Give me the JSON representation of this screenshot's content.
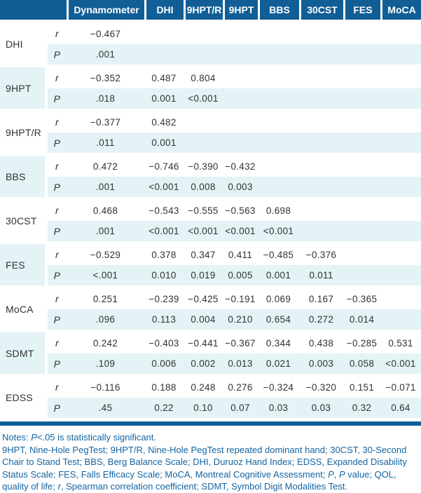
{
  "colors": {
    "header_bg": "#115e96",
    "stripe_bg": "#e4f3f5",
    "body_text": "#323232",
    "notes_text": "#1464a0"
  },
  "table": {
    "stat_labels": {
      "r": "r",
      "p": "P"
    },
    "columns": [
      "Dynamometer",
      "DHI",
      "9HPT/R",
      "9HPT",
      "BBS",
      "30CST",
      "FES",
      "MoCA"
    ],
    "row_groups": [
      {
        "label": "DHI",
        "r": [
          "−0.467"
        ],
        "p": [
          ".001"
        ]
      },
      {
        "label": "9HPT",
        "r": [
          "−0.352",
          "0.487",
          "0.804"
        ],
        "p": [
          ".018",
          "0.001",
          "<0.001"
        ]
      },
      {
        "label": "9HPT/R",
        "r": [
          "−0.377",
          "0.482"
        ],
        "p": [
          ".011",
          "0.001"
        ]
      },
      {
        "label": "BBS",
        "r": [
          "0.472",
          "−0.746",
          "−0.390",
          "−0.432"
        ],
        "p": [
          ".001",
          "<0.001",
          "0.008",
          "0.003"
        ]
      },
      {
        "label": "30CST",
        "r": [
          "0.468",
          "−0.543",
          "−0.555",
          "−0.563",
          "0.698"
        ],
        "p": [
          ".001",
          "<0.001",
          "<0.001",
          "<0.001",
          "<0.001"
        ]
      },
      {
        "label": "FES",
        "r": [
          "−0.529",
          "0.378",
          "0.347",
          "0.411",
          "−0.485",
          "−0.376"
        ],
        "p": [
          "<.001",
          "0.010",
          "0.019",
          "0.005",
          "0.001",
          "0.011"
        ]
      },
      {
        "label": "MoCA",
        "r": [
          "0.251",
          "−0.239",
          "−0.425",
          "−0.191",
          "0.069",
          "0.167",
          "−0.365"
        ],
        "p": [
          ".096",
          "0.113",
          "0.004",
          "0.210",
          "0.654",
          "0.272",
          "0.014"
        ]
      },
      {
        "label": "SDMT",
        "r": [
          "0.242",
          "−0.403",
          "−0.441",
          "−0.367",
          "0.344",
          "0.438",
          "−0.285",
          "0.531"
        ],
        "p": [
          ".109",
          "0.006",
          "0.002",
          "0.013",
          "0.021",
          "0.003",
          "0.058",
          "<0.001"
        ]
      },
      {
        "label": "EDSS",
        "r": [
          "−0.116",
          "0.188",
          "0.248",
          "0.276",
          "−0.324",
          "−0.320",
          "0.151",
          "−0.071"
        ],
        "p": [
          ".45",
          "0.22",
          "0.10",
          "0.07",
          "0.03",
          "0.03",
          "0.32",
          "0.64"
        ]
      }
    ]
  },
  "notes": {
    "line1": [
      {
        "t": "Notes: "
      },
      {
        "t": "P",
        "i": true
      },
      {
        "t": "<.05 is statistically significant."
      }
    ],
    "abbreviations": [
      {
        "t": "9HPT, Nine-Hole PegTest; 9HPT/R, Nine-Hole PegTest repeated dominant hand; 30CST, 30-Second Chair to Stand Test; BBS, Berg Balance Scale; DHI, Duruoz Hand Index; EDSS, Expanded Disability Status Scale; FES, Falls Efficacy Scale; MoCA, Montreal Cognitive Assessment; "
      },
      {
        "t": "P",
        "i": true
      },
      {
        "t": ", "
      },
      {
        "t": "P",
        "i": true
      },
      {
        "t": " value; QOL, quality of life; "
      },
      {
        "t": "r",
        "i": true
      },
      {
        "t": ", Spearman correlation coefficient; SDMT, Symbol Digit Modalities Test."
      }
    ]
  }
}
